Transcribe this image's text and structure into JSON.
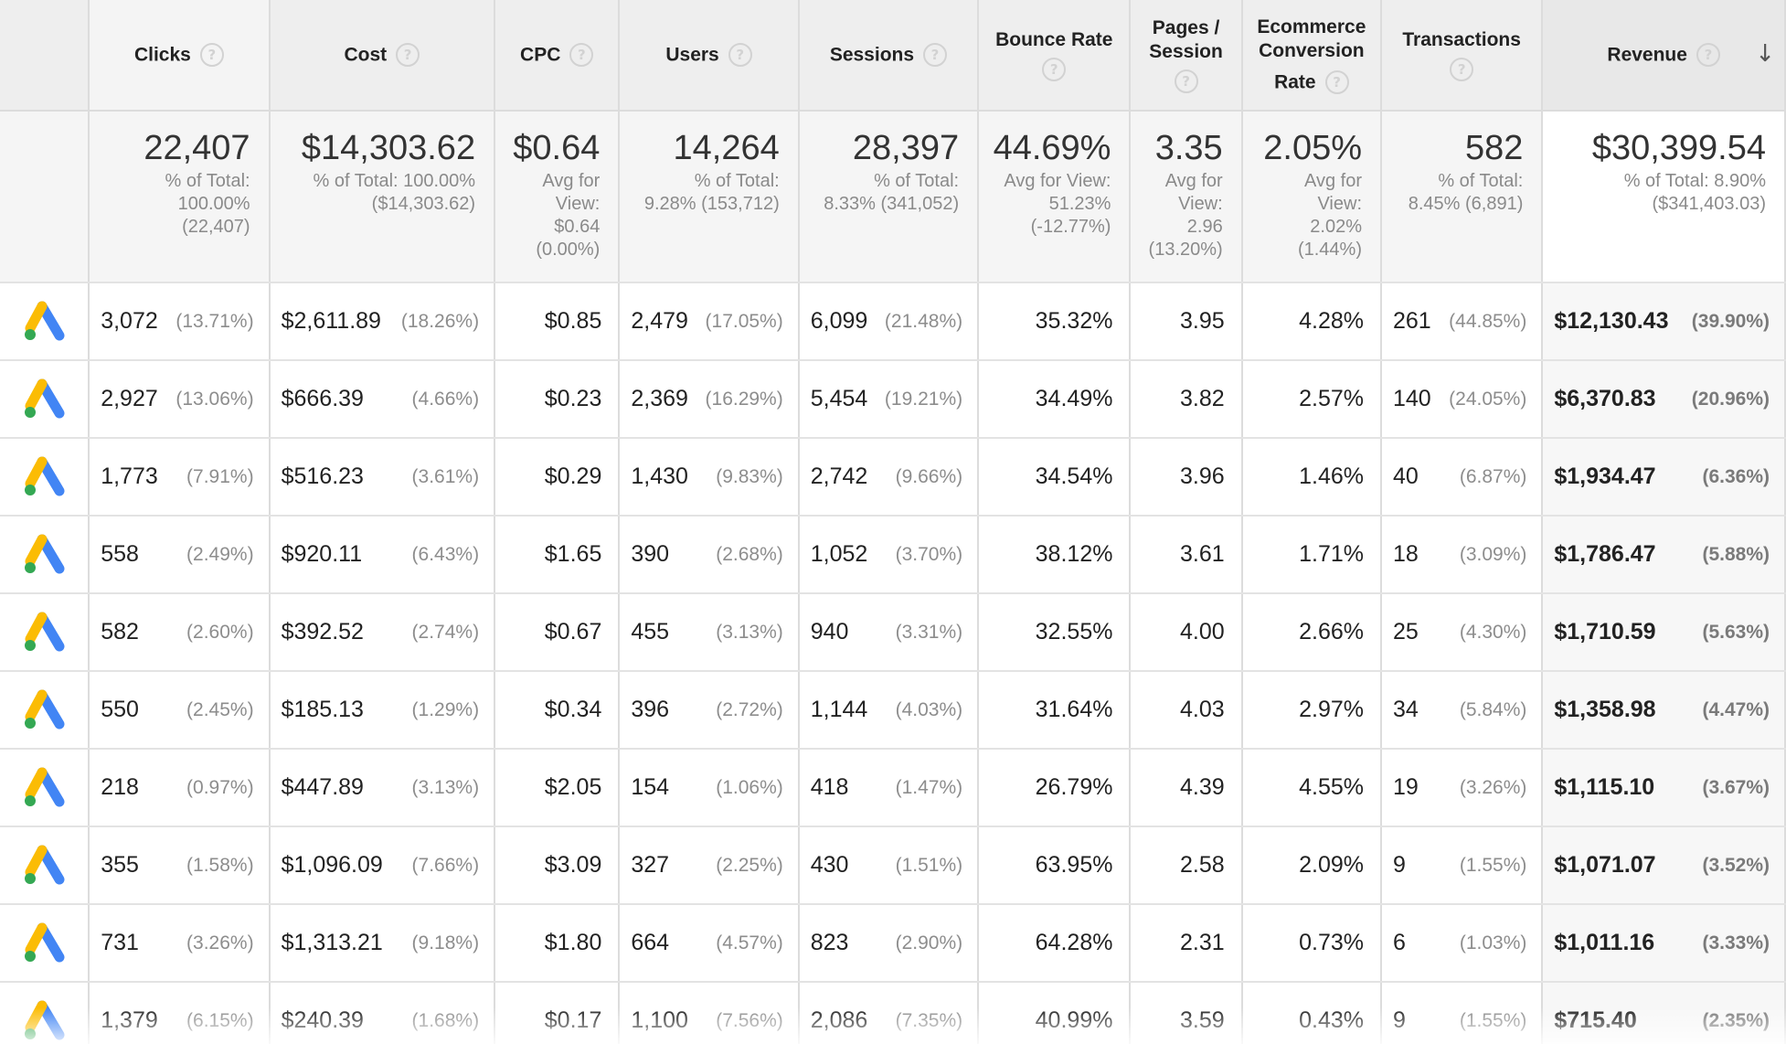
{
  "headers": {
    "clicks": "Clicks",
    "cost": "Cost",
    "cpc": "CPC",
    "users": "Users",
    "sessions": "Sessions",
    "bounce_rate": "Bounce Rate",
    "pages_line1": "Pages /",
    "pages_line2": "Session",
    "conv_line1": "Ecommerce",
    "conv_line2": "Conversion",
    "conv_line3": "Rate",
    "transactions": "Transactions",
    "revenue": "Revenue",
    "help_glyph": "?",
    "sort_glyph": "↓"
  },
  "icons": {
    "row_icon": "google-ads-icon",
    "help": "help-icon",
    "sort": "arrow-down-icon"
  },
  "summary": {
    "clicks": {
      "value": "22,407",
      "l1": "% of Total:",
      "l2": "100.00%",
      "l3": "(22,407)",
      "l4": ""
    },
    "cost": {
      "value": "$14,303.62",
      "l1": "% of Total: 100.00%",
      "l2": "($14,303.62)",
      "l3": "",
      "l4": ""
    },
    "cpc": {
      "value": "$0.64",
      "l1": "Avg for",
      "l2": "View:",
      "l3": "$0.64",
      "l4": "(0.00%)"
    },
    "users": {
      "value": "14,264",
      "l1": "% of Total:",
      "l2": "9.28% (153,712)",
      "l3": "",
      "l4": ""
    },
    "sessions": {
      "value": "28,397",
      "l1": "% of Total:",
      "l2": "8.33% (341,052)",
      "l3": "",
      "l4": ""
    },
    "bounce_rate": {
      "value": "44.69%",
      "l1": "Avg for View:",
      "l2": "51.23%",
      "l3": "(-12.77%)",
      "l4": ""
    },
    "pages": {
      "value": "3.35",
      "l1": "Avg for",
      "l2": "View:",
      "l3": "2.96",
      "l4": "(13.20%)"
    },
    "conversion": {
      "value": "2.05%",
      "l1": "Avg for",
      "l2": "View:",
      "l3": "2.02%",
      "l4": "(1.44%)"
    },
    "transactions": {
      "value": "582",
      "l1": "% of Total:",
      "l2": "8.45% (6,891)",
      "l3": "",
      "l4": ""
    },
    "revenue": {
      "value": "$30,399.54",
      "l1": "% of Total: 8.90%",
      "l2": "($341,403.03)",
      "l3": "",
      "l4": ""
    }
  },
  "rows": [
    {
      "clicks": "3,072",
      "clicks_pct": "(13.71%)",
      "cost": "$2,611.89",
      "cost_pct": "(18.26%)",
      "cpc": "$0.85",
      "users": "2,479",
      "users_pct": "(17.05%)",
      "sessions": "6,099",
      "sessions_pct": "(21.48%)",
      "bounce": "35.32%",
      "pages": "3.95",
      "conv": "4.28%",
      "trans": "261",
      "trans_pct": "(44.85%)",
      "revenue": "$12,130.43",
      "revenue_pct": "(39.90%)"
    },
    {
      "clicks": "2,927",
      "clicks_pct": "(13.06%)",
      "cost": "$666.39",
      "cost_pct": "(4.66%)",
      "cpc": "$0.23",
      "users": "2,369",
      "users_pct": "(16.29%)",
      "sessions": "5,454",
      "sessions_pct": "(19.21%)",
      "bounce": "34.49%",
      "pages": "3.82",
      "conv": "2.57%",
      "trans": "140",
      "trans_pct": "(24.05%)",
      "revenue": "$6,370.83",
      "revenue_pct": "(20.96%)"
    },
    {
      "clicks": "1,773",
      "clicks_pct": "(7.91%)",
      "cost": "$516.23",
      "cost_pct": "(3.61%)",
      "cpc": "$0.29",
      "users": "1,430",
      "users_pct": "(9.83%)",
      "sessions": "2,742",
      "sessions_pct": "(9.66%)",
      "bounce": "34.54%",
      "pages": "3.96",
      "conv": "1.46%",
      "trans": "40",
      "trans_pct": "(6.87%)",
      "revenue": "$1,934.47",
      "revenue_pct": "(6.36%)"
    },
    {
      "clicks": "558",
      "clicks_pct": "(2.49%)",
      "cost": "$920.11",
      "cost_pct": "(6.43%)",
      "cpc": "$1.65",
      "users": "390",
      "users_pct": "(2.68%)",
      "sessions": "1,052",
      "sessions_pct": "(3.70%)",
      "bounce": "38.12%",
      "pages": "3.61",
      "conv": "1.71%",
      "trans": "18",
      "trans_pct": "(3.09%)",
      "revenue": "$1,786.47",
      "revenue_pct": "(5.88%)"
    },
    {
      "clicks": "582",
      "clicks_pct": "(2.60%)",
      "cost": "$392.52",
      "cost_pct": "(2.74%)",
      "cpc": "$0.67",
      "users": "455",
      "users_pct": "(3.13%)",
      "sessions": "940",
      "sessions_pct": "(3.31%)",
      "bounce": "32.55%",
      "pages": "4.00",
      "conv": "2.66%",
      "trans": "25",
      "trans_pct": "(4.30%)",
      "revenue": "$1,710.59",
      "revenue_pct": "(5.63%)"
    },
    {
      "clicks": "550",
      "clicks_pct": "(2.45%)",
      "cost": "$185.13",
      "cost_pct": "(1.29%)",
      "cpc": "$0.34",
      "users": "396",
      "users_pct": "(2.72%)",
      "sessions": "1,144",
      "sessions_pct": "(4.03%)",
      "bounce": "31.64%",
      "pages": "4.03",
      "conv": "2.97%",
      "trans": "34",
      "trans_pct": "(5.84%)",
      "revenue": "$1,358.98",
      "revenue_pct": "(4.47%)"
    },
    {
      "clicks": "218",
      "clicks_pct": "(0.97%)",
      "cost": "$447.89",
      "cost_pct": "(3.13%)",
      "cpc": "$2.05",
      "users": "154",
      "users_pct": "(1.06%)",
      "sessions": "418",
      "sessions_pct": "(1.47%)",
      "bounce": "26.79%",
      "pages": "4.39",
      "conv": "4.55%",
      "trans": "19",
      "trans_pct": "(3.26%)",
      "revenue": "$1,115.10",
      "revenue_pct": "(3.67%)"
    },
    {
      "clicks": "355",
      "clicks_pct": "(1.58%)",
      "cost": "$1,096.09",
      "cost_pct": "(7.66%)",
      "cpc": "$3.09",
      "users": "327",
      "users_pct": "(2.25%)",
      "sessions": "430",
      "sessions_pct": "(1.51%)",
      "bounce": "63.95%",
      "pages": "2.58",
      "conv": "2.09%",
      "trans": "9",
      "trans_pct": "(1.55%)",
      "revenue": "$1,071.07",
      "revenue_pct": "(3.52%)"
    },
    {
      "clicks": "731",
      "clicks_pct": "(3.26%)",
      "cost": "$1,313.21",
      "cost_pct": "(9.18%)",
      "cpc": "$1.80",
      "users": "664",
      "users_pct": "(4.57%)",
      "sessions": "823",
      "sessions_pct": "(2.90%)",
      "bounce": "64.28%",
      "pages": "2.31",
      "conv": "0.73%",
      "trans": "6",
      "trans_pct": "(1.03%)",
      "revenue": "$1,011.16",
      "revenue_pct": "(3.33%)"
    },
    {
      "clicks": "1,379",
      "clicks_pct": "(6.15%)",
      "cost": "$240.39",
      "cost_pct": "(1.68%)",
      "cpc": "$0.17",
      "users": "1,100",
      "users_pct": "(7.56%)",
      "sessions": "2,086",
      "sessions_pct": "(7.35%)",
      "bounce": "40.99%",
      "pages": "3.59",
      "conv": "0.43%",
      "trans": "9",
      "trans_pct": "(1.55%)",
      "revenue": "$715.40",
      "revenue_pct": "(2.35%)"
    }
  ],
  "colors": {
    "ads_blue": "#4285f4",
    "ads_yellow": "#fbbc04",
    "ads_green": "#34a853"
  }
}
